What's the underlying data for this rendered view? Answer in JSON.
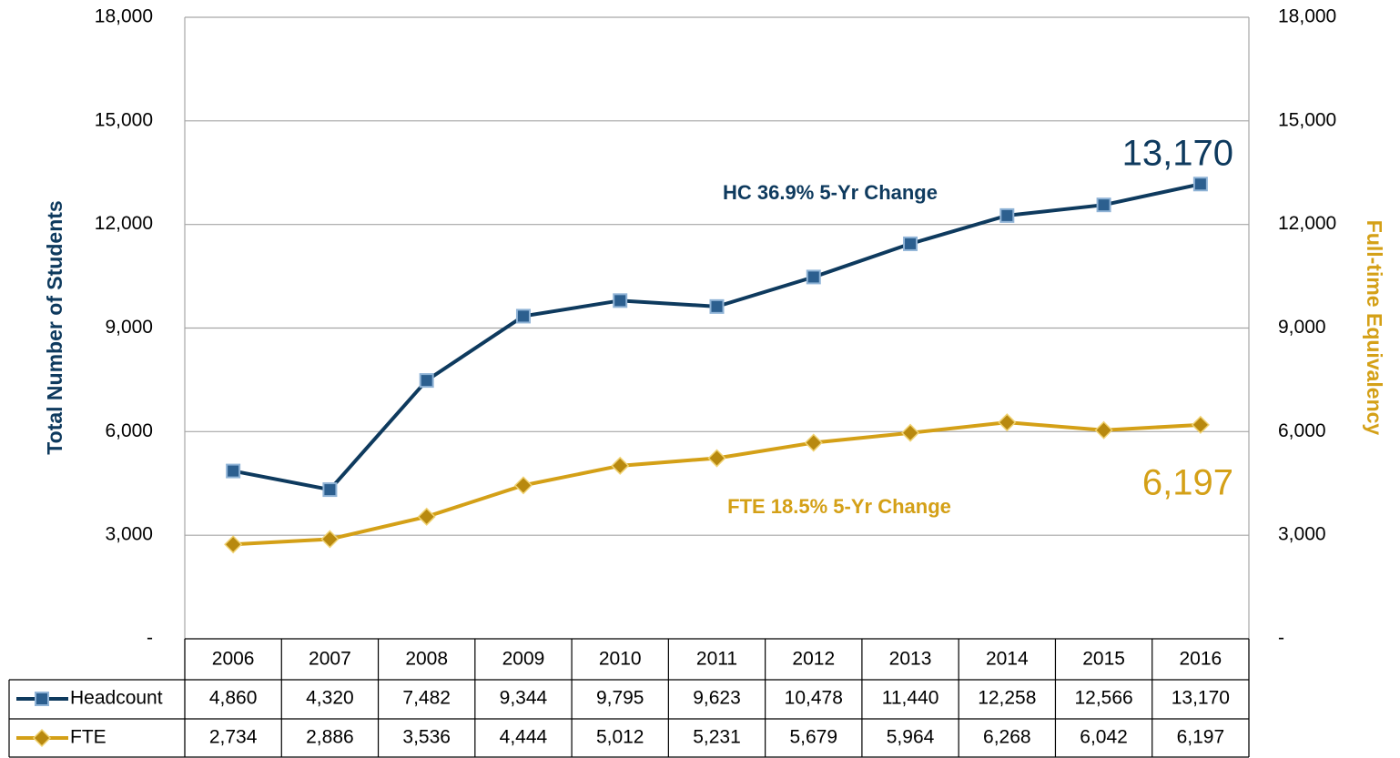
{
  "chart_data": {
    "type": "line",
    "y_label": "Total  Number of Students",
    "y2_label": "Full-time Equivalency",
    "categories": [
      "2006",
      "2007",
      "2008",
      "2009",
      "2010",
      "2011",
      "2012",
      "2013",
      "2014",
      "2015",
      "2016"
    ],
    "series": [
      {
        "name": "Headcount",
        "color": "#0e3a5e",
        "marker": "square",
        "axis": "y",
        "values": [
          4860,
          4320,
          7482,
          9344,
          9795,
          9623,
          10478,
          11440,
          12258,
          12566,
          13170
        ],
        "value_labels": [
          "4,860",
          "4,320",
          "7,482",
          "9,344",
          "9,795",
          "9,623",
          "10,478",
          "11,440",
          "12,258",
          "12,566",
          "13,170"
        ]
      },
      {
        "name": "FTE",
        "color": "#d4a017",
        "marker": "diamond",
        "axis": "y2",
        "values": [
          2734,
          2886,
          3536,
          4444,
          5012,
          5231,
          5679,
          5964,
          6268,
          6042,
          6197
        ],
        "value_labels": [
          "2,734",
          "2,886",
          "3,536",
          "4,444",
          "5,012",
          "5,231",
          "5,679",
          "5,964",
          "6,268",
          "6,042",
          "6,197"
        ]
      }
    ],
    "ylim": [
      0,
      18000
    ],
    "yticks": [
      {
        "value": 0,
        "label": "-"
      },
      {
        "value": 3000,
        "label": "3,000"
      },
      {
        "value": 6000,
        "label": "6,000"
      },
      {
        "value": 9000,
        "label": "9,000"
      },
      {
        "value": 12000,
        "label": "12,000"
      },
      {
        "value": 15000,
        "label": "15,000"
      },
      {
        "value": 18000,
        "label": "18,000"
      }
    ],
    "y2lim": [
      0,
      18000
    ],
    "y2ticks": [
      {
        "value": 0,
        "label": "-"
      },
      {
        "value": 3000,
        "label": "3,000"
      },
      {
        "value": 6000,
        "label": "6,000"
      },
      {
        "value": 9000,
        "label": "9,000"
      },
      {
        "value": 12000,
        "label": "12,000"
      },
      {
        "value": 15000,
        "label": "15,000"
      },
      {
        "value": 18000,
        "label": "18,000"
      }
    ],
    "grid": true,
    "annotations": [
      {
        "text": "HC 36.9% 5-Yr Change",
        "series": 0
      },
      {
        "text": "FTE 18.5% 5-Yr Change",
        "series": 1
      },
      {
        "text": "13,170",
        "series": 0
      },
      {
        "text": "6,197",
        "series": 1
      }
    ]
  }
}
